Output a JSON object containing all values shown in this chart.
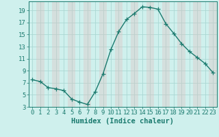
{
  "x": [
    0,
    1,
    2,
    3,
    4,
    5,
    6,
    7,
    8,
    9,
    10,
    11,
    12,
    13,
    14,
    15,
    16,
    17,
    18,
    19,
    20,
    21,
    22,
    23
  ],
  "y": [
    7.5,
    7.2,
    6.2,
    6.0,
    5.7,
    4.3,
    3.8,
    3.4,
    5.5,
    8.5,
    12.5,
    15.5,
    17.5,
    18.5,
    19.6,
    19.5,
    19.2,
    16.8,
    15.2,
    13.5,
    12.2,
    11.2,
    10.2,
    8.7
  ],
  "line_color": "#1a7a6e",
  "bg_color": "#cff0ed",
  "grid_major_color": "#aad8d3",
  "grid_minor_color": "#e0c8c8",
  "xlabel": "Humidex (Indice chaleur)",
  "ylim": [
    3,
    20
  ],
  "xlim": [
    -0.5,
    23.5
  ],
  "yticks": [
    3,
    5,
    7,
    9,
    11,
    13,
    15,
    17,
    19
  ],
  "xticks": [
    0,
    1,
    2,
    3,
    4,
    5,
    6,
    7,
    8,
    9,
    10,
    11,
    12,
    13,
    14,
    15,
    16,
    17,
    18,
    19,
    20,
    21,
    22,
    23
  ],
  "marker": "+",
  "markersize": 4,
  "linewidth": 1.0,
  "xlabel_fontsize": 7.5,
  "tick_fontsize": 6.5
}
